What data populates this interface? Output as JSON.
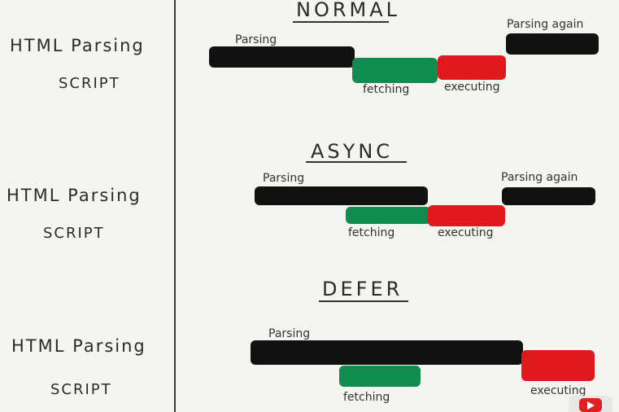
{
  "labels": {
    "html_parsing": "HTML Parsing",
    "script": "SCRIPT"
  },
  "sections": {
    "normal": {
      "title": "NORMAL",
      "parsing": "Parsing",
      "fetching": "fetching",
      "executing": "executing",
      "parsing_again": "Parsing again"
    },
    "async": {
      "title": "ASYNC",
      "parsing": "Parsing",
      "fetching": "fetching",
      "executing": "executing",
      "parsing_again": "Parsing again"
    },
    "defer": {
      "title": "DEFER",
      "parsing": "Parsing",
      "fetching": "fetching",
      "executing": "executing"
    }
  },
  "colors": {
    "parsing": "#111111",
    "fetching": "#0f8c4e",
    "executing": "#e0191f"
  },
  "icons": [
    "youtube-play-icon"
  ]
}
